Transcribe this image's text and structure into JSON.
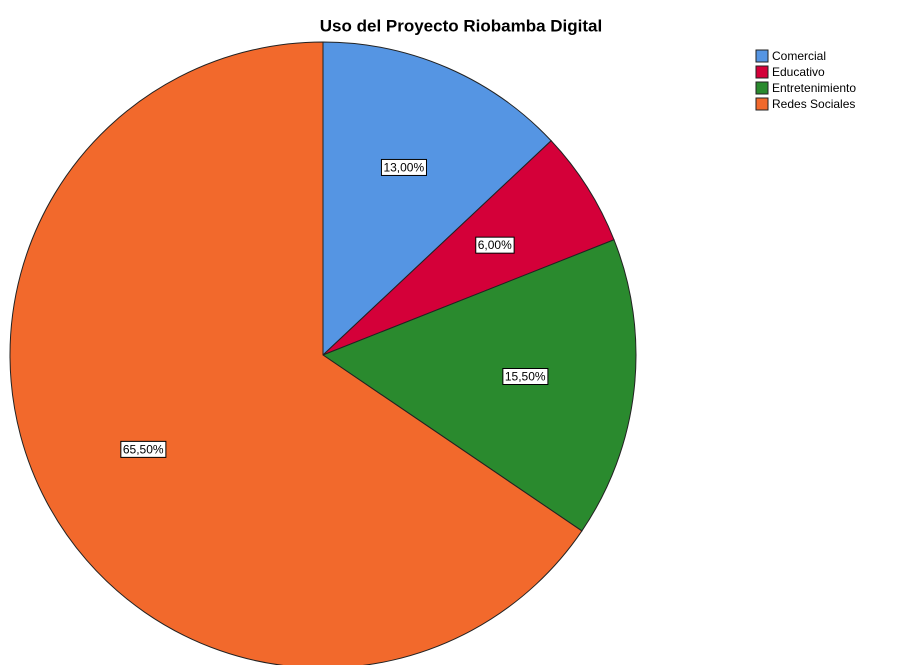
{
  "chart_data": {
    "type": "pie",
    "title": "Uso del Proyecto Riobamba Digital",
    "categories": [
      "Comercial",
      "Educativo",
      "Entretenimiento",
      "Redes Sociales"
    ],
    "values": [
      13,
      6,
      15.5,
      65.5
    ],
    "value_labels": [
      "13,00%",
      "6,00%",
      "15,50%",
      "65,50%"
    ],
    "colors": [
      "#5595e3",
      "#d40039",
      "#2a8a2e",
      "#f2692c"
    ],
    "legend": "upper right"
  }
}
